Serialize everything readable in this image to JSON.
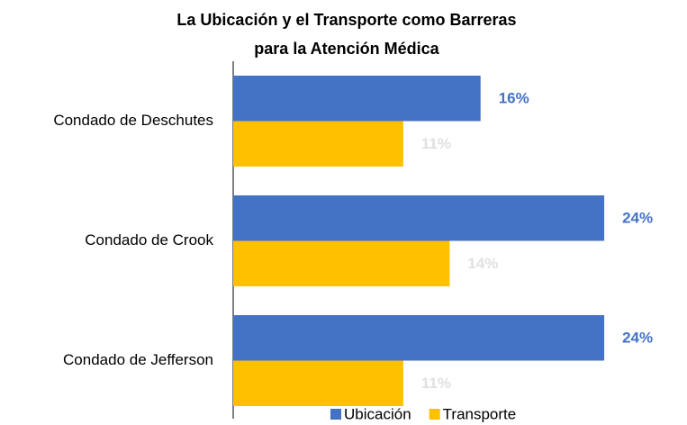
{
  "chart_data": {
    "type": "hbar",
    "title": "La Ubicación y el Transporte como Barreras para la Atención Médica",
    "categories": [
      "Condado de Deschutes",
      "Condado de Crook",
      "Condado de Jefferson"
    ],
    "series": [
      {
        "name": "Ubicación",
        "color": "#4472c4",
        "values": [
          16,
          24,
          24
        ],
        "value_labels": [
          "16%",
          "24%",
          "24%"
        ]
      },
      {
        "name": "Transporte",
        "color": "#ffc000",
        "values": [
          11,
          14,
          11
        ],
        "value_labels": [
          "11%",
          "14%",
          "11%"
        ]
      }
    ],
    "legend": "bottom-right"
  }
}
